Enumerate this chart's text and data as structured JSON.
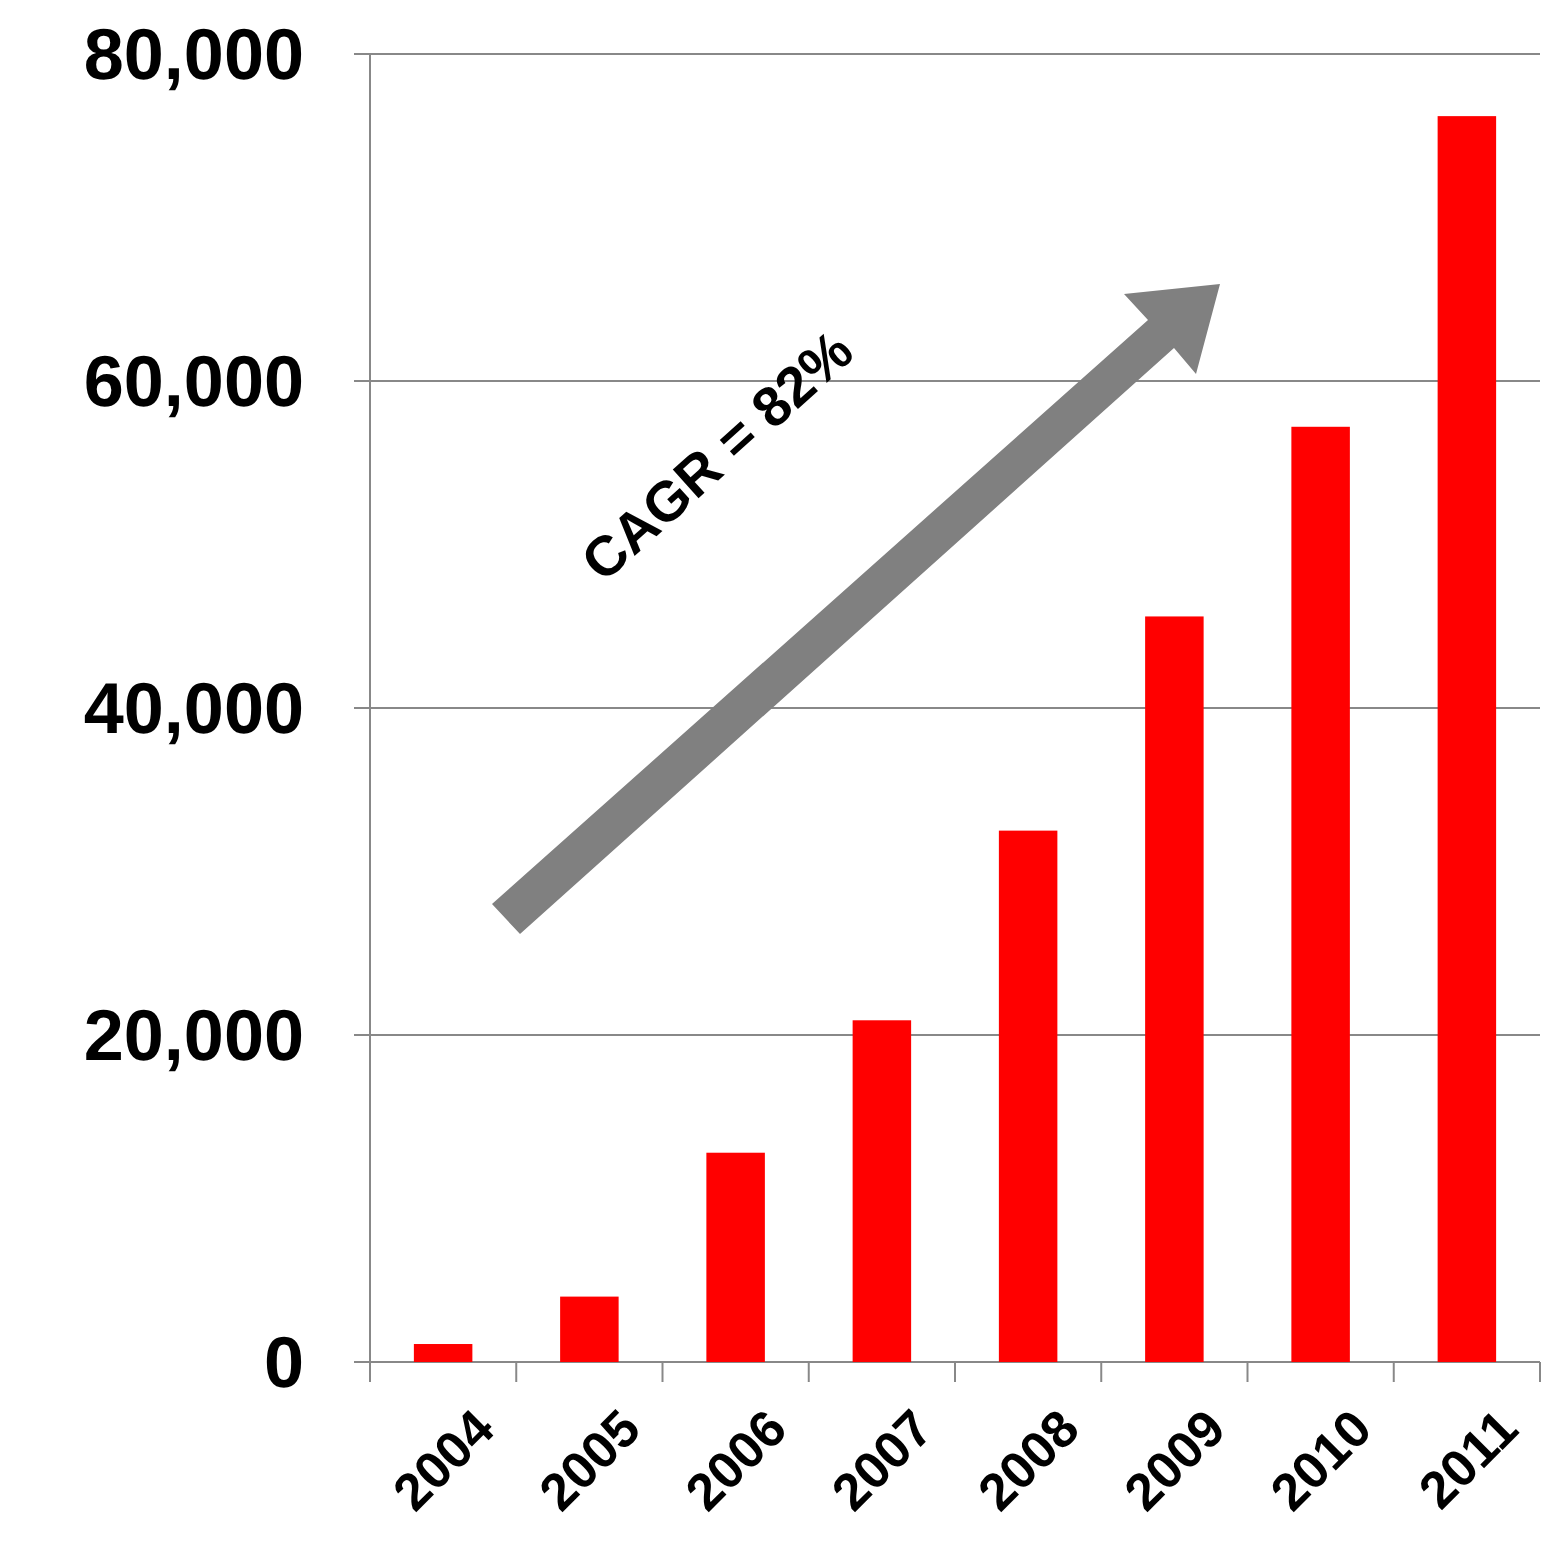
{
  "chart_data": {
    "type": "bar",
    "categories": [
      "2004",
      "2005",
      "2006",
      "2007",
      "2008",
      "2009",
      "2010",
      "2011"
    ],
    "values": [
      1100,
      4000,
      12800,
      20900,
      32500,
      45600,
      57200,
      76200
    ],
    "color": "#ff0000",
    "ylim": [
      0,
      80000
    ],
    "yticks": [
      {
        "value": 0,
        "label": "0"
      },
      {
        "value": 20000,
        "label": "20,000"
      },
      {
        "value": 40000,
        "label": "40,000"
      },
      {
        "value": 60000,
        "label": "60,000"
      },
      {
        "value": 80000,
        "label": "80,000"
      }
    ],
    "grid": "y",
    "annotations": [
      "CAGR = 82%"
    ]
  }
}
